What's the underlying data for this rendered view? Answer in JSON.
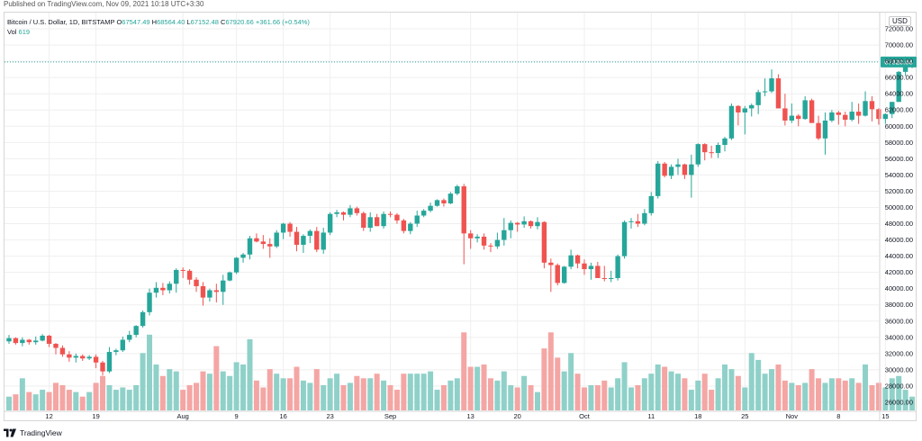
{
  "published": "Published on TradingView.com, Nov 09, 2021 10:18 UTC+3:30",
  "legend": {
    "title": "Bitcoin / U.S. Dollar, 1D, BITSTAMP",
    "open_label": "O",
    "open": "67547.49",
    "high_label": "H",
    "high": "68564.40",
    "low_label": "L",
    "low": "67152.48",
    "close_label": "C",
    "close": "67920.66",
    "change": "+361.66 (+0.54%)",
    "vol_label": "Vol",
    "vol": "619"
  },
  "currency": "USD",
  "footer": {
    "brand": "TradingView"
  },
  "colors": {
    "up": "#26a69a",
    "down": "#ef5350",
    "vol_up": "#8fd1c9",
    "vol_down": "#f4a6a4",
    "grid": "#efefef"
  },
  "chart_data": {
    "type": "candlestick",
    "title": "Bitcoin / U.S. Dollar, 1D, BITSTAMP",
    "ylabel": "USD",
    "ylim": [
      25000,
      74000
    ],
    "y_ticks": [
      "26000.00",
      "28000.00",
      "30000.00",
      "32000.00",
      "34000.00",
      "36000.00",
      "38000.00",
      "40000.00",
      "42000.00",
      "44000.00",
      "46000.00",
      "48000.00",
      "50000.00",
      "52000.00",
      "54000.00",
      "56000.00",
      "58000.00",
      "60000.00",
      "62000.00",
      "64000.00",
      "66000.00",
      "68000.00",
      "70000.00",
      "72000.00"
    ],
    "x_ticks": [
      {
        "label": "12",
        "index": 6
      },
      {
        "label": "19",
        "index": 13
      },
      {
        "label": "Aug",
        "index": 26
      },
      {
        "label": "9",
        "index": 34
      },
      {
        "label": "16",
        "index": 41
      },
      {
        "label": "23",
        "index": 48
      },
      {
        "label": "Sep",
        "index": 57
      },
      {
        "label": "13",
        "index": 69
      },
      {
        "label": "20",
        "index": 76
      },
      {
        "label": "Oct",
        "index": 86
      },
      {
        "label": "11",
        "index": 96
      },
      {
        "label": "18",
        "index": 103
      },
      {
        "label": "25",
        "index": 110
      },
      {
        "label": "Nov",
        "index": 117
      },
      {
        "label": "8",
        "index": 124
      },
      {
        "label": "15",
        "index": 131
      }
    ],
    "last_price": "67920.66",
    "candles": [
      [
        33500,
        34300,
        33200,
        33900,
        6
      ],
      [
        33900,
        34000,
        33100,
        33300,
        7
      ],
      [
        33300,
        34000,
        32900,
        33700,
        14
      ],
      [
        33700,
        33800,
        33100,
        33400,
        8
      ],
      [
        33400,
        34100,
        33100,
        33600,
        7
      ],
      [
        33600,
        34400,
        33500,
        34200,
        9
      ],
      [
        34200,
        34300,
        32800,
        33200,
        8
      ],
      [
        33200,
        33300,
        31900,
        32700,
        12
      ],
      [
        32700,
        33000,
        31600,
        31900,
        11
      ],
      [
        31900,
        32300,
        31000,
        31500,
        9
      ],
      [
        31500,
        32000,
        30900,
        31700,
        8
      ],
      [
        31700,
        31900,
        31100,
        31400,
        6
      ],
      [
        31400,
        31800,
        31200,
        31600,
        8
      ],
      [
        31600,
        31900,
        30200,
        30900,
        12
      ],
      [
        30900,
        31100,
        29300,
        29800,
        15
      ],
      [
        29800,
        32800,
        29600,
        32200,
        11
      ],
      [
        32200,
        32600,
        31800,
        32400,
        9
      ],
      [
        32400,
        34100,
        32200,
        33700,
        10
      ],
      [
        33700,
        34800,
        33400,
        34300,
        9
      ],
      [
        34300,
        35500,
        34000,
        35400,
        11
      ],
      [
        35400,
        37300,
        35200,
        37100,
        25
      ],
      [
        37100,
        40000,
        36700,
        39500,
        33
      ],
      [
        39500,
        40800,
        38900,
        40100,
        20
      ],
      [
        40100,
        40700,
        39200,
        39800,
        15
      ],
      [
        39800,
        40900,
        39400,
        40600,
        18
      ],
      [
        40600,
        42500,
        39500,
        42300,
        17
      ],
      [
        42300,
        42600,
        41300,
        42200,
        9
      ],
      [
        42200,
        42400,
        40500,
        41100,
        11
      ],
      [
        41100,
        41400,
        39600,
        40300,
        12
      ],
      [
        40300,
        40800,
        37900,
        38900,
        17
      ],
      [
        38900,
        40000,
        38400,
        39800,
        16
      ],
      [
        39800,
        40600,
        38300,
        39600,
        28
      ],
      [
        39600,
        41700,
        38000,
        41000,
        17
      ],
      [
        41000,
        42100,
        40900,
        42000,
        15
      ],
      [
        42000,
        43900,
        41800,
        43800,
        21
      ],
      [
        43800,
        44400,
        43200,
        44200,
        20
      ],
      [
        44200,
        46500,
        43600,
        46200,
        31
      ],
      [
        46200,
        46800,
        45700,
        45800,
        13
      ],
      [
        45800,
        46600,
        44900,
        45500,
        10
      ],
      [
        45500,
        46200,
        43800,
        45200,
        18
      ],
      [
        45200,
        47200,
        45000,
        46900,
        16
      ],
      [
        46900,
        48100,
        46100,
        48000,
        14
      ],
      [
        48000,
        48200,
        46400,
        47000,
        14
      ],
      [
        47000,
        47600,
        44600,
        45400,
        19
      ],
      [
        45400,
        46700,
        44400,
        46500,
        13
      ],
      [
        46500,
        47300,
        45600,
        47100,
        12
      ],
      [
        47100,
        47600,
        44500,
        44800,
        18
      ],
      [
        44800,
        47500,
        44300,
        46900,
        11
      ],
      [
        46900,
        49400,
        46600,
        49200,
        14
      ],
      [
        49200,
        49700,
        48800,
        49400,
        16
      ],
      [
        49400,
        49500,
        48400,
        49100,
        11
      ],
      [
        49100,
        50300,
        48800,
        49900,
        12
      ],
      [
        49900,
        50100,
        49000,
        49300,
        15
      ],
      [
        49300,
        49500,
        47100,
        47500,
        14
      ],
      [
        47500,
        49400,
        47000,
        48800,
        14
      ],
      [
        48800,
        49200,
        47700,
        47700,
        16
      ],
      [
        47700,
        49500,
        47400,
        49200,
        13
      ],
      [
        49200,
        49500,
        48800,
        49100,
        11
      ],
      [
        49100,
        49300,
        48000,
        48400,
        9
      ],
      [
        48400,
        48600,
        46800,
        47100,
        16
      ],
      [
        47100,
        48200,
        46700,
        48000,
        16
      ],
      [
        48000,
        49600,
        47600,
        49000,
        16
      ],
      [
        49000,
        49800,
        48800,
        49600,
        16
      ],
      [
        49600,
        50600,
        49400,
        50200,
        17
      ],
      [
        50200,
        51000,
        50100,
        50900,
        9
      ],
      [
        50900,
        51100,
        50100,
        50500,
        11
      ],
      [
        50500,
        51900,
        50400,
        51700,
        13
      ],
      [
        51700,
        52800,
        51500,
        52600,
        14
      ],
      [
        52600,
        52900,
        43000,
        46800,
        34
      ],
      [
        46800,
        47200,
        44900,
        46200,
        19
      ],
      [
        46200,
        46700,
        45700,
        46400,
        19
      ],
      [
        46400,
        46800,
        44800,
        45300,
        20
      ],
      [
        45300,
        45600,
        44500,
        45200,
        14
      ],
      [
        45200,
        46900,
        44900,
        46000,
        13
      ],
      [
        46000,
        48700,
        45300,
        47200,
        17
      ],
      [
        47200,
        48400,
        46200,
        48100,
        11
      ],
      [
        48100,
        48200,
        47000,
        47900,
        10
      ],
      [
        47900,
        48900,
        47500,
        48300,
        15
      ],
      [
        48300,
        48400,
        47400,
        47700,
        11
      ],
      [
        47700,
        48800,
        47300,
        48200,
        8
      ],
      [
        48200,
        48300,
        42500,
        43200,
        27
      ],
      [
        43200,
        43700,
        39600,
        42900,
        34
      ],
      [
        42900,
        43100,
        40400,
        40700,
        23
      ],
      [
        40700,
        42800,
        40600,
        42700,
        17
      ],
      [
        42700,
        44800,
        42400,
        44100,
        25
      ],
      [
        44100,
        44200,
        42500,
        43100,
        16
      ],
      [
        43100,
        43600,
        41700,
        42400,
        10
      ],
      [
        42400,
        43200,
        41100,
        42800,
        11
      ],
      [
        42800,
        43300,
        41300,
        41300,
        11
      ],
      [
        41300,
        42800,
        40900,
        41200,
        13
      ],
      [
        41200,
        42200,
        40800,
        41300,
        10
      ],
      [
        41300,
        44200,
        41000,
        44000,
        14
      ],
      [
        44000,
        48400,
        43700,
        48200,
        21
      ],
      [
        48200,
        48700,
        47400,
        48300,
        10
      ],
      [
        48300,
        49200,
        47600,
        48000,
        11
      ],
      [
        48000,
        49800,
        47800,
        49300,
        14
      ],
      [
        49300,
        51900,
        49000,
        51400,
        16
      ],
      [
        51400,
        55700,
        51100,
        55400,
        20
      ],
      [
        55400,
        55600,
        53700,
        53900,
        19
      ],
      [
        53900,
        55300,
        53500,
        55000,
        17
      ],
      [
        55000,
        56000,
        54000,
        55300,
        16
      ],
      [
        55300,
        55400,
        53500,
        54000,
        14
      ],
      [
        54000,
        56500,
        51200,
        55300,
        9
      ],
      [
        55300,
        57900,
        55000,
        57800,
        13
      ],
      [
        57800,
        57900,
        55800,
        56800,
        16
      ],
      [
        56800,
        57600,
        56100,
        56700,
        9
      ],
      [
        56700,
        58000,
        56100,
        57700,
        14
      ],
      [
        57700,
        58700,
        56900,
        58500,
        20
      ],
      [
        58500,
        62800,
        58300,
        62500,
        18
      ],
      [
        62500,
        62600,
        60100,
        61700,
        15
      ],
      [
        61700,
        62500,
        59000,
        62200,
        10
      ],
      [
        62200,
        62800,
        61200,
        62600,
        25
      ],
      [
        62600,
        64500,
        61500,
        64200,
        22
      ],
      [
        64200,
        65900,
        63700,
        64300,
        16
      ],
      [
        64300,
        67000,
        64100,
        65900,
        18
      ],
      [
        65900,
        66400,
        62500,
        62200,
        20
      ],
      [
        62200,
        64000,
        60100,
        60700,
        13
      ],
      [
        60700,
        62800,
        60400,
        61300,
        12
      ],
      [
        61300,
        61500,
        60000,
        60900,
        11
      ],
      [
        60900,
        63700,
        60800,
        63200,
        12
      ],
      [
        63200,
        63400,
        60500,
        60400,
        18
      ],
      [
        60400,
        61300,
        58300,
        58500,
        14
      ],
      [
        58500,
        61700,
        56500,
        60700,
        12
      ],
      [
        60700,
        62000,
        60500,
        61700,
        14
      ],
      [
        61700,
        61900,
        60200,
        61400,
        14
      ],
      [
        61400,
        61800,
        60000,
        60800,
        13
      ],
      [
        60800,
        63000,
        60600,
        61800,
        14
      ],
      [
        61800,
        62800,
        60300,
        61300,
        12
      ],
      [
        61300,
        64300,
        61200,
        63100,
        20
      ],
      [
        63100,
        63700,
        60600,
        62100,
        11
      ],
      [
        62100,
        62200,
        60200,
        60900,
        12
      ],
      [
        60900,
        61600,
        60300,
        61500,
        10
      ],
      [
        61500,
        63000,
        61000,
        63000,
        14
      ],
      [
        63000,
        66800,
        63000,
        66700,
        15
      ],
      [
        66700,
        68600,
        66200,
        67500,
        9
      ],
      [
        67547,
        68564,
        67152,
        67921,
        6
      ]
    ]
  }
}
